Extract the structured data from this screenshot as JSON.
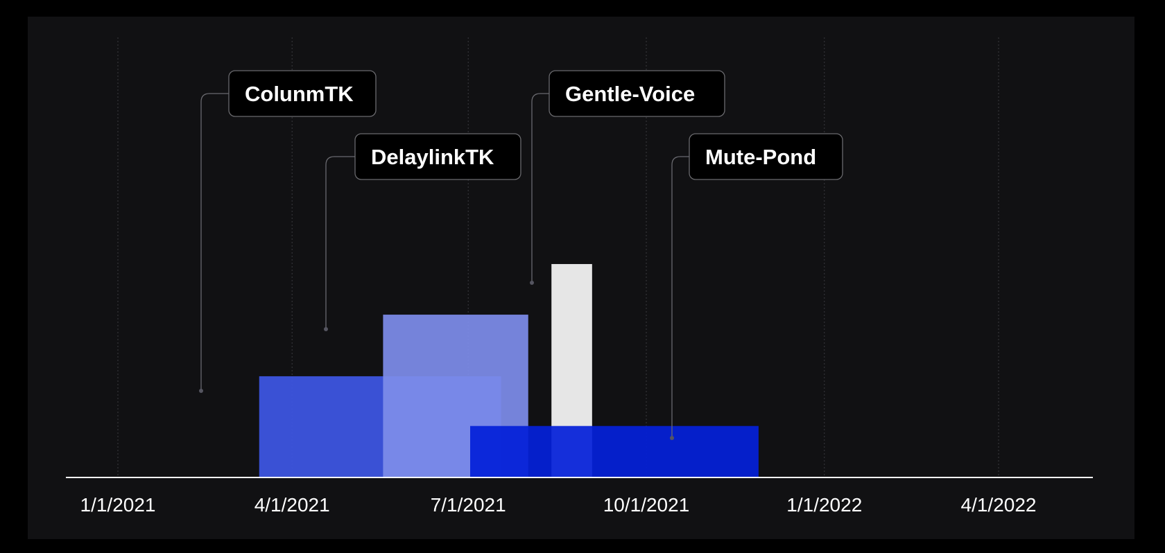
{
  "chart_data": {
    "type": "bar",
    "x_axis": {
      "type": "date",
      "ticks": [
        "1/1/2021",
        "4/1/2021",
        "7/1/2021",
        "10/1/2021",
        "1/1/2022",
        "4/1/2022"
      ],
      "range": [
        "2020-11-03",
        "2022-06-06"
      ],
      "grid": true
    },
    "y_axis": {
      "range": [
        0,
        100
      ],
      "visible": false
    },
    "series": [
      {
        "name": "ColunmTK",
        "start": "2021-03-15",
        "end": "2021-07-18",
        "value": 23,
        "color": "#3d56e4"
      },
      {
        "name": "DelaylinkTK",
        "start": "2021-05-18",
        "end": "2021-08-01",
        "value": 37,
        "color": "#7d8cea"
      },
      {
        "name": "Gentle-Voice",
        "start": "2021-08-13",
        "end": "2021-09-03",
        "value": 48.5,
        "color": "#e6e6e6"
      },
      {
        "name": "Mute-Pond",
        "start": "2021-07-02",
        "end": "2021-11-28",
        "value": 11.7,
        "color": "#0420d8"
      }
    ]
  },
  "colors": {
    "background": "#000000",
    "panel": "#111113",
    "axis": "#ffffff",
    "grid": "#3a3a3f",
    "callout_bg": "#000000",
    "callout_border": "#6a6a6e"
  }
}
